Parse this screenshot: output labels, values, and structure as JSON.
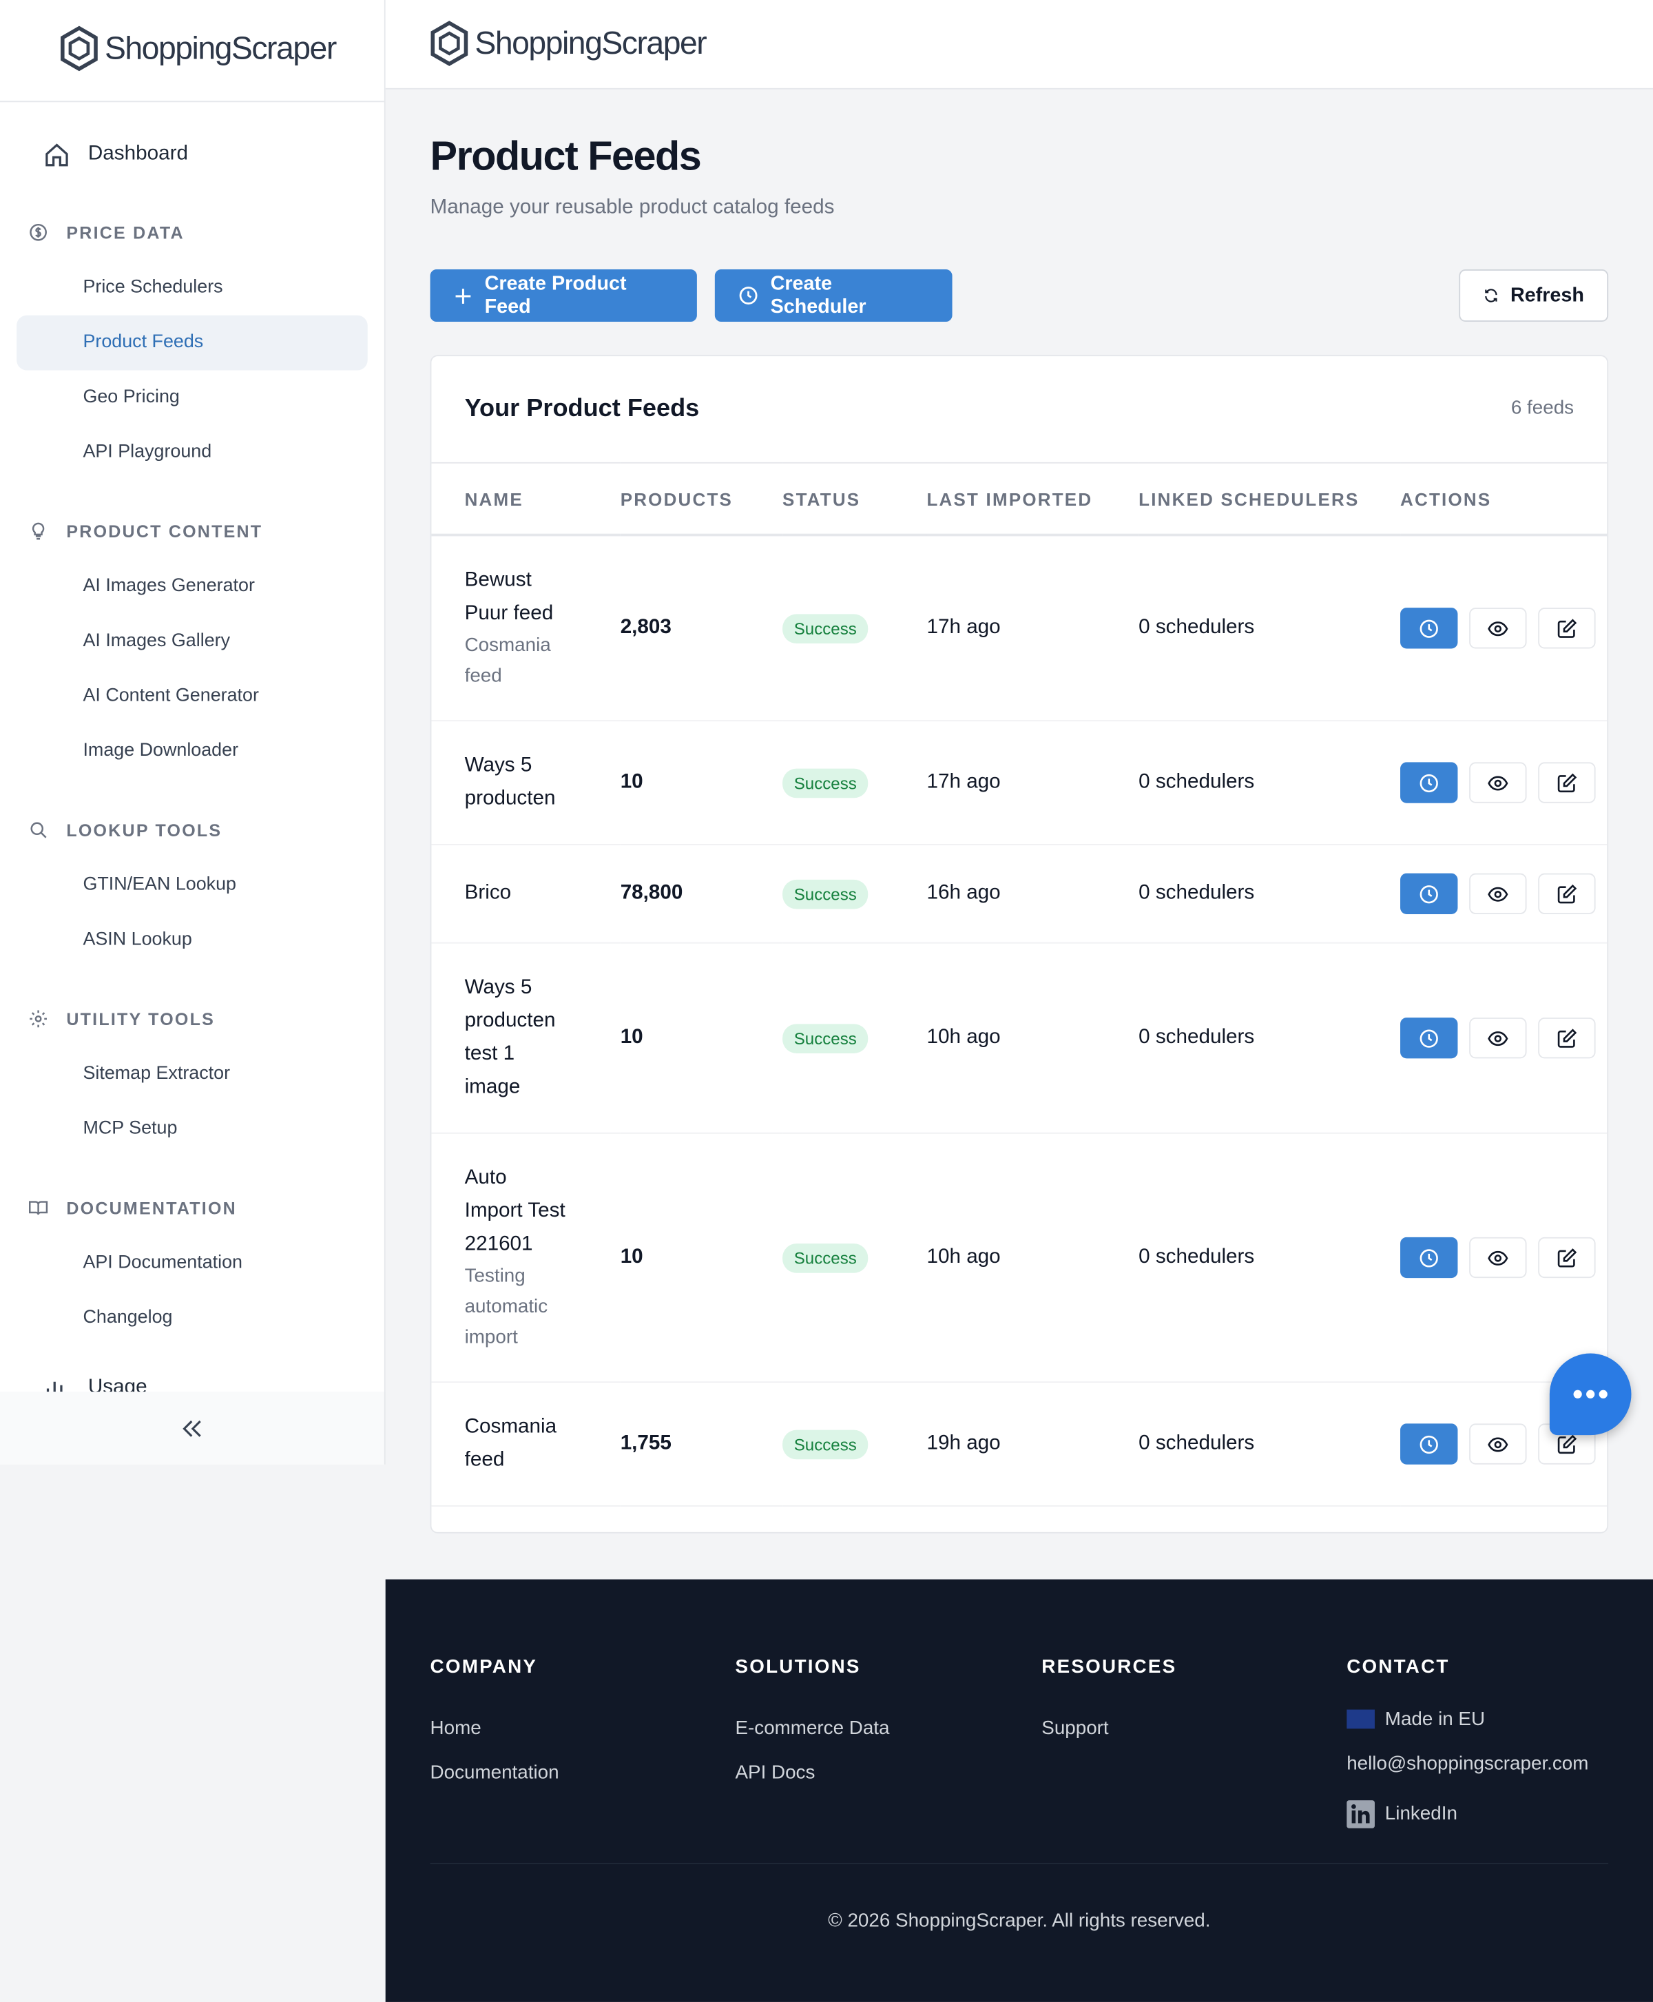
{
  "sidebar": {
    "logo": "ShoppingScraper",
    "dashboard": "Dashboard",
    "sections": [
      {
        "title": "PRICE DATA",
        "items": [
          "Price Schedulers",
          "Product Feeds",
          "Geo Pricing",
          "API Playground"
        ]
      },
      {
        "title": "PRODUCT CONTENT",
        "items": [
          "AI Images Generator",
          "AI Images Gallery",
          "AI Content Generator",
          "Image Downloader"
        ]
      },
      {
        "title": "LOOKUP TOOLS",
        "items": [
          "GTIN/EAN Lookup",
          "ASIN Lookup"
        ]
      },
      {
        "title": "UTILITY TOOLS",
        "items": [
          "Sitemap Extractor",
          "MCP Setup"
        ]
      },
      {
        "title": "DOCUMENTATION",
        "items": [
          "API Documentation",
          "Changelog"
        ]
      }
    ],
    "usage": "Usage"
  },
  "header": {
    "logo": "ShoppingScraper"
  },
  "page": {
    "title": "Product Feeds",
    "subtitle": "Manage your reusable product catalog feeds",
    "buttons": [
      "Create Product Feed",
      "Create Scheduler"
    ],
    "refresh": "Refresh"
  },
  "table": {
    "title": "Your Product Feeds",
    "count": "6 feeds",
    "columns": [
      "NAME",
      "PRODUCTS",
      "STATUS",
      "LAST IMPORTED",
      "LINKED SCHEDULERS",
      "ACTIONS"
    ],
    "rows": [
      {
        "name": "Bewust Puur feed",
        "description": "Cosmania feed",
        "products": "2,803",
        "status": "Success",
        "last_imported": "17h ago",
        "linked": "0 schedulers"
      },
      {
        "name": "Ways 5 producten",
        "products": "10",
        "status": "Success",
        "last_imported": "17h ago",
        "linked": "0 schedulers"
      },
      {
        "name": "Brico",
        "products": "78,800",
        "status": "Success",
        "last_imported": "16h ago",
        "linked": "0 schedulers"
      },
      {
        "name": "Ways 5 producten test 1 image",
        "products": "10",
        "status": "Success",
        "last_imported": "10h ago",
        "linked": "0 schedulers"
      },
      {
        "name": "Auto Import Test 221601",
        "description": "Testing automatic import",
        "products": "10",
        "status": "Success",
        "last_imported": "10h ago",
        "linked": "0 schedulers"
      },
      {
        "name": "Cosmania feed",
        "products": "1,755",
        "status": "Success",
        "last_imported": "19h ago",
        "linked": "0 schedulers"
      }
    ]
  },
  "footer": {
    "columns": [
      {
        "title": "COMPANY",
        "links": [
          "Home",
          "Documentation"
        ]
      },
      {
        "title": "SOLUTIONS",
        "links": [
          "E-commerce Data",
          "API Docs"
        ]
      },
      {
        "title": "RESOURCES",
        "links": [
          "Support"
        ]
      },
      {
        "title": "CONTACT",
        "links": [
          "Made in EU",
          "hello@shoppingscraper.com",
          "LinkedIn"
        ]
      }
    ],
    "copyright": "© 2026 ShoppingScraper. All rights reserved."
  }
}
